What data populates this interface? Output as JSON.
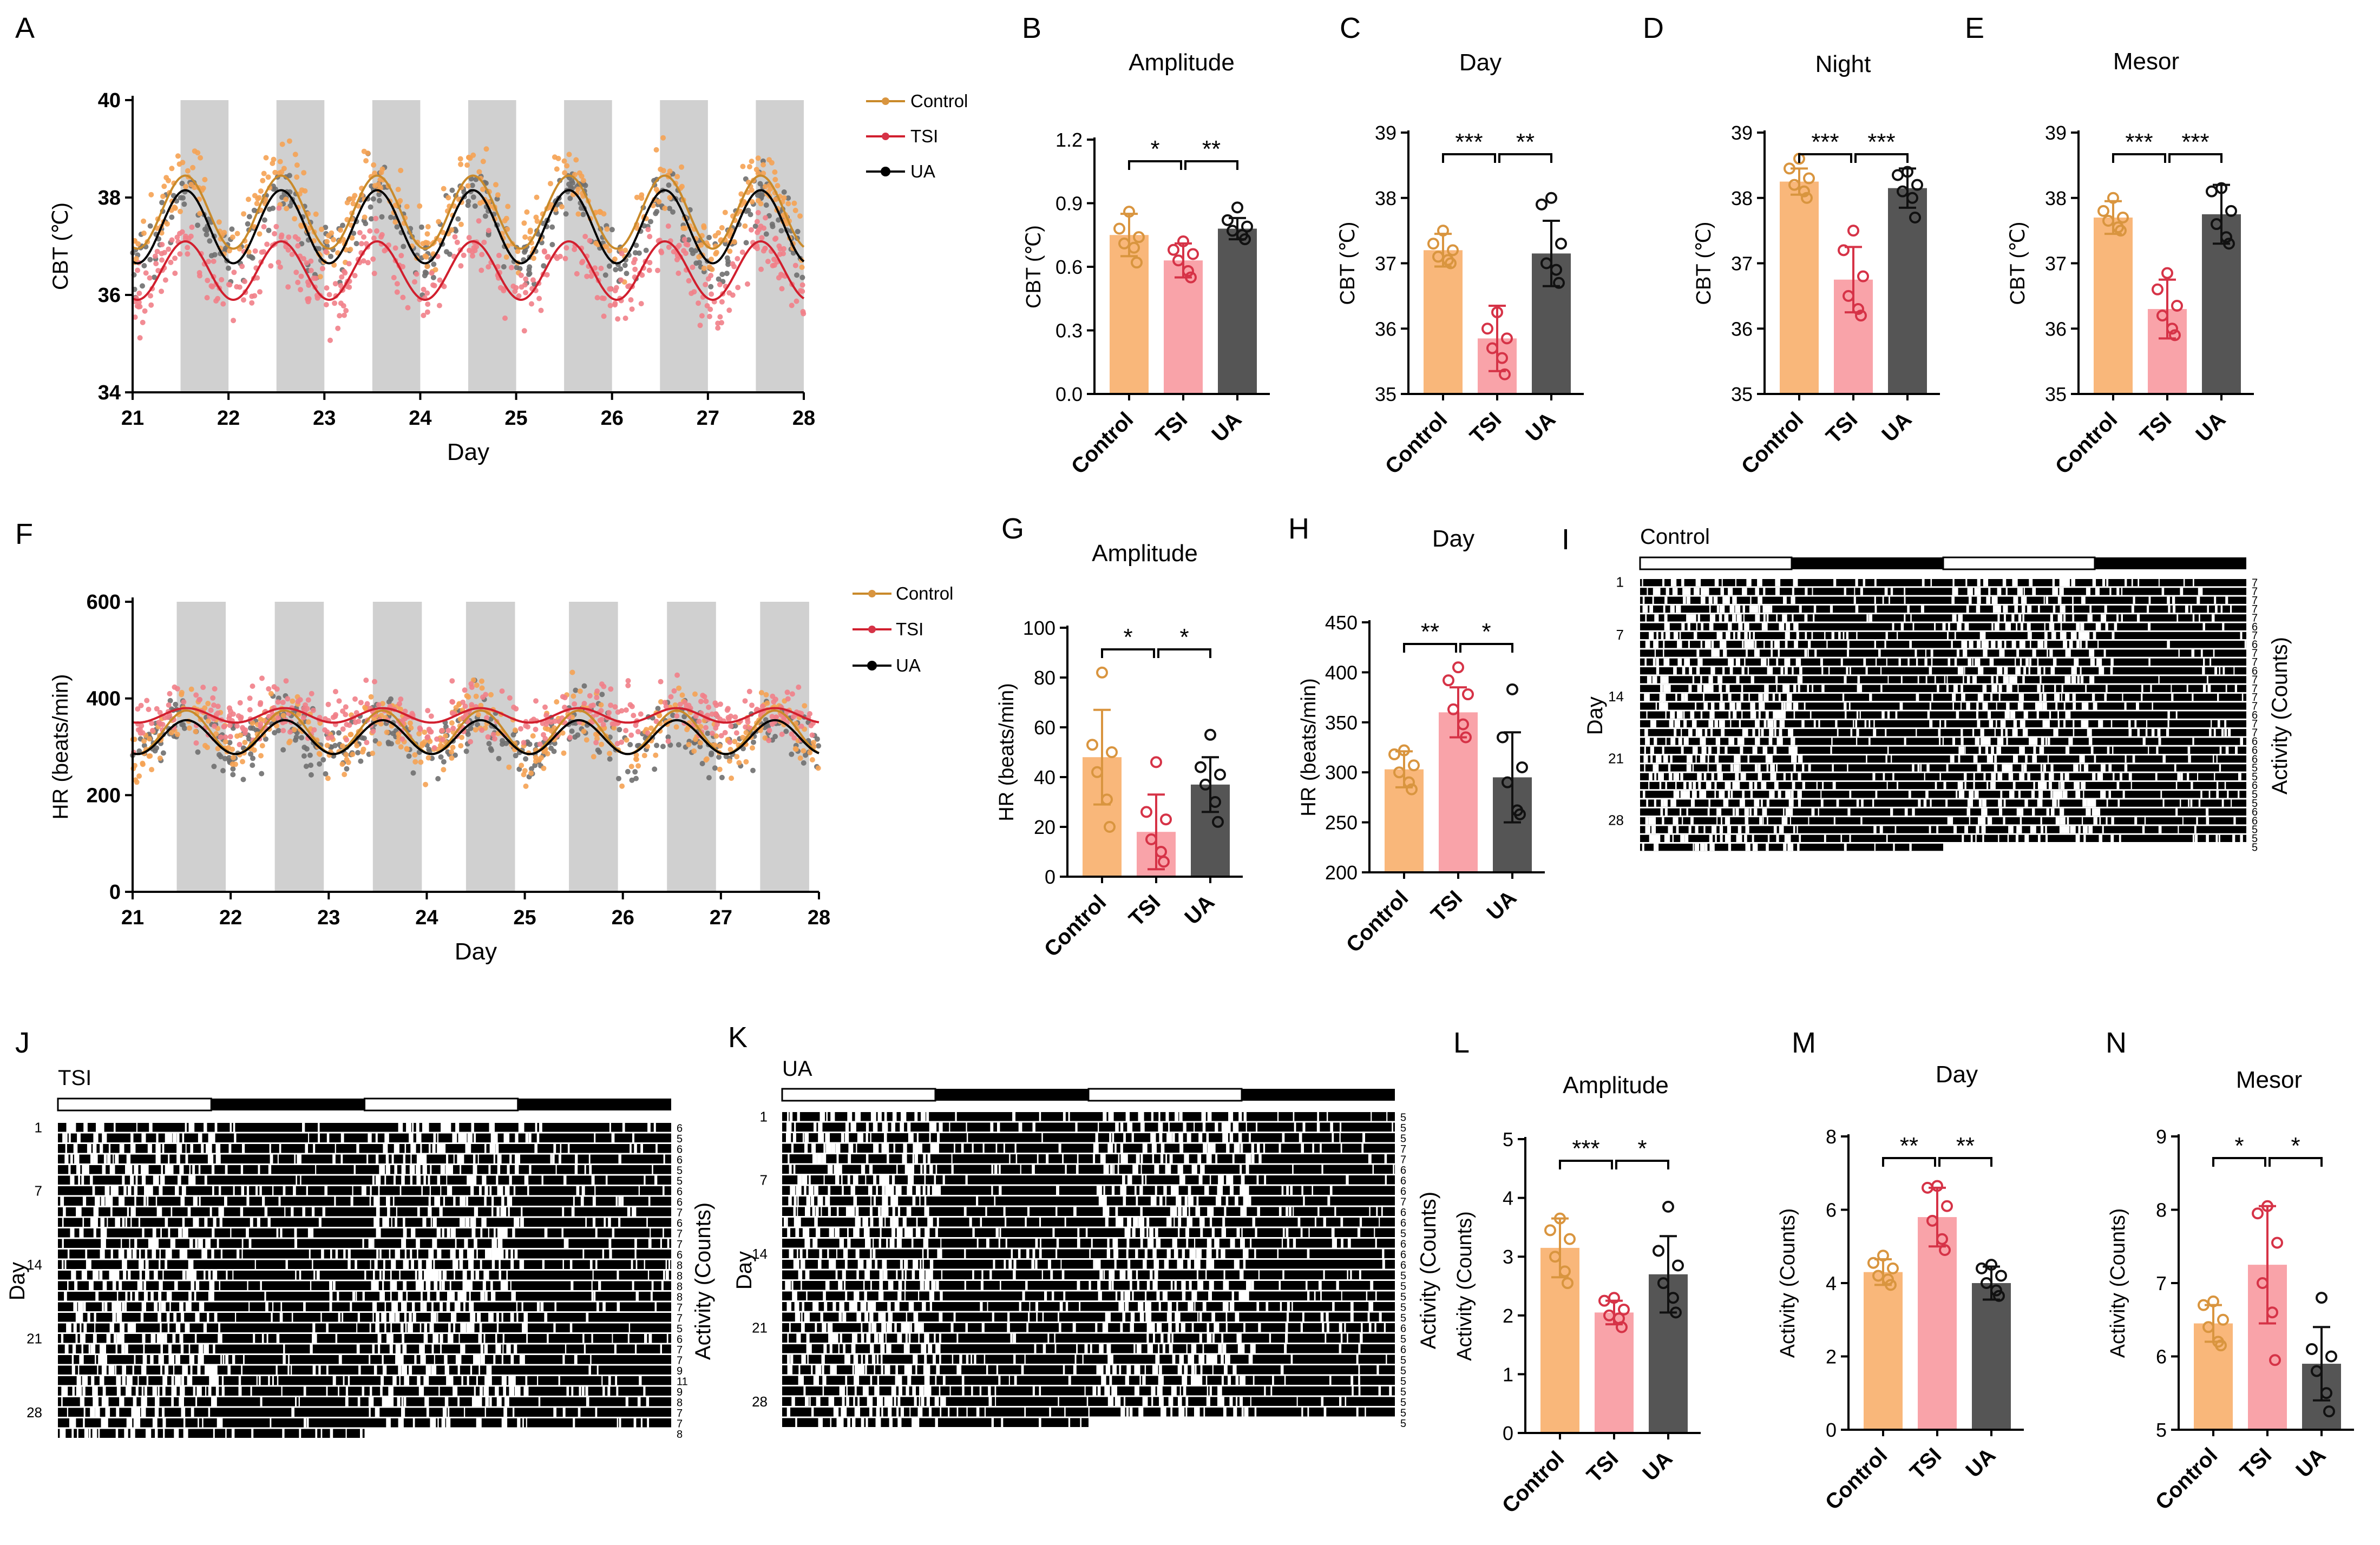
{
  "colors": {
    "control": "#F9B77A",
    "control_pt": "#D9953F",
    "control_line": "#C98A2A",
    "tsi": "#F9A3A9",
    "tsi_pt": "#D63347",
    "tsi_line": "#D11F2E",
    "ua": "#555555",
    "ua_pt": "#111111",
    "ua_line": "#000000",
    "night": "#D0D0D0",
    "blue_num": "#1F4FA0"
  },
  "legend": [
    "Control",
    "TSI",
    "UA"
  ],
  "panel_letters": [
    "A",
    "B",
    "C",
    "D",
    "E",
    "F",
    "G",
    "H",
    "I",
    "J",
    "K",
    "L",
    "M",
    "N"
  ],
  "chart_data": [
    {
      "id": "A",
      "type": "scatter",
      "xlabel": "Day",
      "ylabel": "CBT (℃)",
      "xlim": [
        21,
        28
      ],
      "ylim": [
        34,
        40
      ],
      "xticks": [
        21,
        22,
        23,
        24,
        25,
        26,
        27,
        28
      ],
      "yticks": [
        34,
        36,
        38,
        40
      ],
      "night_bands": [
        [
          21.5,
          22
        ],
        [
          22.5,
          23
        ],
        [
          23.5,
          24
        ],
        [
          24.5,
          25
        ],
        [
          25.5,
          26
        ],
        [
          26.5,
          27
        ],
        [
          27.5,
          28
        ]
      ],
      "series": [
        {
          "name": "Control",
          "mesor": 37.7,
          "amplitude": 0.75
        },
        {
          "name": "TSI",
          "mesor": 36.5,
          "amplitude": 0.6
        },
        {
          "name": "UA",
          "mesor": 37.4,
          "amplitude": 0.75
        }
      ]
    },
    {
      "id": "B",
      "type": "bar",
      "title": "Amplitude",
      "ylabel": "CBT (℃)",
      "categories": [
        "Control",
        "TSI",
        "UA"
      ],
      "means": [
        0.75,
        0.63,
        0.78
      ],
      "errors": [
        0.1,
        0.08,
        0.05
      ],
      "points": [
        [
          0.86,
          0.78,
          0.74,
          0.71,
          0.69,
          0.62
        ],
        [
          0.72,
          0.68,
          0.66,
          0.63,
          0.58,
          0.55
        ],
        [
          0.88,
          0.82,
          0.79,
          0.77,
          0.75,
          0.73
        ]
      ],
      "yticks": [
        "0.0",
        "0.3",
        "0.6",
        "0.9",
        "1.2"
      ],
      "ylim": [
        0,
        1.2
      ],
      "sig": [
        "*",
        "**"
      ]
    },
    {
      "id": "C",
      "type": "bar",
      "title": "Day",
      "ylabel": "CBT (℃)",
      "categories": [
        "Control",
        "TSI",
        "UA"
      ],
      "means": [
        37.2,
        35.85,
        37.15
      ],
      "errors": [
        0.25,
        0.5,
        0.5
      ],
      "points": [
        [
          37.5,
          37.3,
          37.2,
          37.1,
          37.05,
          37.0
        ],
        [
          36.25,
          36.0,
          35.85,
          35.7,
          35.55,
          35.3
        ],
        [
          38.0,
          37.9,
          37.3,
          37.0,
          36.9,
          36.7
        ]
      ],
      "yticks": [
        "35",
        "36",
        "37",
        "38",
        "39"
      ],
      "ylim": [
        35,
        39
      ],
      "sig": [
        "***",
        "**"
      ]
    },
    {
      "id": "D",
      "type": "bar",
      "title": "Night",
      "ylabel": "CBT (℃)",
      "categories": [
        "Control",
        "TSI",
        "UA"
      ],
      "means": [
        38.25,
        36.75,
        38.15
      ],
      "errors": [
        0.2,
        0.5,
        0.3
      ],
      "points": [
        [
          38.6,
          38.45,
          38.3,
          38.2,
          38.1,
          38.0
        ],
        [
          37.5,
          37.2,
          36.8,
          36.5,
          36.3,
          36.2
        ],
        [
          38.4,
          38.35,
          38.2,
          38.1,
          38.0,
          37.7
        ]
      ],
      "yticks": [
        "35",
        "36",
        "37",
        "38",
        "39"
      ],
      "ylim": [
        35,
        39
      ],
      "sig": [
        "***",
        "***"
      ]
    },
    {
      "id": "E",
      "type": "bar",
      "title": "Mesor",
      "ylabel": "CBT (℃)",
      "categories": [
        "Control",
        "TSI",
        "UA"
      ],
      "means": [
        37.7,
        36.3,
        37.75
      ],
      "errors": [
        0.25,
        0.45,
        0.45
      ],
      "points": [
        [
          38.0,
          37.8,
          37.7,
          37.65,
          37.55,
          37.5
        ],
        [
          36.85,
          36.6,
          36.35,
          36.2,
          36.0,
          35.9
        ],
        [
          38.15,
          38.1,
          37.8,
          37.6,
          37.4,
          37.3
        ]
      ],
      "yticks": [
        "35",
        "36",
        "37",
        "38",
        "39"
      ],
      "ylim": [
        35,
        39
      ],
      "sig": [
        "***",
        "***"
      ]
    },
    {
      "id": "F",
      "type": "scatter",
      "xlabel": "Day",
      "ylabel": "HR (beats/min)",
      "xlim": [
        21,
        28
      ],
      "ylim": [
        0,
        600
      ],
      "xticks": [
        21,
        22,
        23,
        24,
        25,
        26,
        27,
        28
      ],
      "yticks": [
        0,
        200,
        400,
        600
      ],
      "night_bands": [
        [
          21.45,
          21.95
        ],
        [
          22.45,
          22.95
        ],
        [
          23.45,
          23.95
        ],
        [
          24.4,
          24.9
        ],
        [
          25.45,
          25.95
        ],
        [
          26.45,
          26.95
        ],
        [
          27.4,
          27.9
        ]
      ],
      "series": [
        {
          "name": "Control",
          "mesor": 330,
          "amplitude": 45
        },
        {
          "name": "TSI",
          "mesor": 365,
          "amplitude": 15
        },
        {
          "name": "UA",
          "mesor": 320,
          "amplitude": 35
        }
      ]
    },
    {
      "id": "G",
      "type": "bar",
      "title": "Amplitude",
      "ylabel": "HR (beats/min)",
      "categories": [
        "Control",
        "TSI",
        "UA"
      ],
      "means": [
        48,
        18,
        37
      ],
      "errors": [
        19,
        15,
        11
      ],
      "points": [
        [
          82,
          53,
          50,
          42,
          31,
          20
        ],
        [
          46,
          26,
          23,
          15,
          10,
          6
        ],
        [
          57,
          44,
          41,
          37,
          30,
          22
        ]
      ],
      "yticks": [
        "0",
        "20",
        "40",
        "60",
        "80",
        "100"
      ],
      "ylim": [
        0,
        100
      ],
      "sig": [
        "*",
        "*"
      ]
    },
    {
      "id": "H",
      "type": "bar",
      "title": "Day",
      "ylabel": "HR (beats/min)",
      "categories": [
        "Control",
        "TSI",
        "UA"
      ],
      "means": [
        303,
        360,
        295
      ],
      "errors": [
        18,
        25,
        45
      ],
      "points": [
        [
          322,
          318,
          307,
          300,
          290,
          283
        ],
        [
          405,
          392,
          378,
          363,
          348,
          335
        ],
        [
          383,
          335,
          305,
          290,
          262,
          258
        ]
      ],
      "yticks": [
        "200",
        "250",
        "300",
        "350",
        "400",
        "450"
      ],
      "ylim": [
        200,
        450
      ],
      "sig": [
        "**",
        "*"
      ]
    },
    {
      "id": "I",
      "type": "actogram",
      "title": "Control",
      "xlabel": "Day",
      "ylabel": "Activity (Counts)",
      "day_labels": [
        "1",
        "7",
        "14",
        "21",
        "28"
      ],
      "scale_nums": [
        "7",
        "7",
        "7",
        "7",
        "7",
        "6",
        "7",
        "6",
        "7",
        "7",
        "6",
        "7",
        "7",
        "7",
        "7",
        "6",
        "7",
        "7",
        "6",
        "6",
        "6",
        "5",
        "5",
        "6",
        "5",
        "5",
        "6",
        "6",
        "5",
        "5",
        "5"
      ]
    },
    {
      "id": "J",
      "type": "actogram",
      "title": "TSI",
      "xlabel": "Day",
      "ylabel": "Activity (Counts)",
      "day_labels": [
        "1",
        "7",
        "14",
        "21",
        "28"
      ],
      "scale_nums": [
        "6",
        "5",
        "6",
        "6",
        "5",
        "5",
        "6",
        "6",
        "7",
        "6",
        "7",
        "7",
        "6",
        "8",
        "8",
        "8",
        "8",
        "7",
        "7",
        "5",
        "6",
        "7",
        "7",
        "9",
        "11",
        "9",
        "8",
        "7",
        "7",
        "8"
      ]
    },
    {
      "id": "K",
      "type": "actogram",
      "title": "UA",
      "xlabel": "Day",
      "ylabel": "Activity (Counts)",
      "day_labels": [
        "1",
        "7",
        "14",
        "21",
        "28"
      ],
      "scale_nums": [
        "5",
        "5",
        "5",
        "7",
        "7",
        "6",
        "6",
        "6",
        "7",
        "6",
        "6",
        "5",
        "6",
        "6",
        "6",
        "5",
        "5",
        "5",
        "5",
        "5",
        "6",
        "5",
        "6",
        "5",
        "5",
        "5",
        "5",
        "5",
        "5",
        "5"
      ]
    },
    {
      "id": "L",
      "type": "bar",
      "title": "Amplitude",
      "ylabel": "Activity (Counts)",
      "categories": [
        "Control",
        "TSI",
        "UA"
      ],
      "means": [
        3.15,
        2.05,
        2.7
      ],
      "errors": [
        0.5,
        0.2,
        0.65
      ],
      "points": [
        [
          3.65,
          3.45,
          3.3,
          3.0,
          2.75,
          2.55
        ],
        [
          2.3,
          2.25,
          2.1,
          2.0,
          1.95,
          1.8
        ],
        [
          3.85,
          3.1,
          2.85,
          2.55,
          2.3,
          2.05
        ]
      ],
      "yticks": [
        "0",
        "1",
        "2",
        "3",
        "4",
        "5"
      ],
      "ylim": [
        0,
        5
      ],
      "sig": [
        "***",
        "*"
      ]
    },
    {
      "id": "M",
      "type": "bar",
      "title": "Day",
      "ylabel": "Activity (Counts)",
      "categories": [
        "Control",
        "TSI",
        "UA"
      ],
      "means": [
        4.3,
        5.8,
        4.0
      ],
      "errors": [
        0.35,
        0.8,
        0.45
      ],
      "points": [
        [
          4.75,
          4.55,
          4.4,
          4.2,
          4.1,
          3.95
        ],
        [
          6.65,
          6.6,
          6.1,
          5.7,
          5.2,
          4.9
        ],
        [
          4.5,
          4.4,
          4.2,
          4.0,
          3.8,
          3.65
        ]
      ],
      "yticks": [
        "0",
        "2",
        "4",
        "6",
        "8"
      ],
      "ylim": [
        0,
        8
      ],
      "sig": [
        "**",
        "**"
      ]
    },
    {
      "id": "N",
      "type": "bar",
      "title": "Mesor",
      "ylabel": "Activity (Counts)",
      "categories": [
        "Control",
        "TSI",
        "UA"
      ],
      "means": [
        6.45,
        7.25,
        5.9
      ],
      "errors": [
        0.25,
        0.8,
        0.5
      ],
      "points": [
        [
          6.75,
          6.7,
          6.5,
          6.4,
          6.2,
          6.15
        ],
        [
          8.05,
          7.95,
          7.55,
          7.0,
          6.6,
          5.95
        ],
        [
          6.8,
          6.1,
          6.0,
          5.8,
          5.5,
          5.25
        ]
      ],
      "yticks": [
        "5",
        "6",
        "7",
        "8",
        "9"
      ],
      "ylim": [
        5,
        9
      ],
      "sig": [
        "*",
        "*"
      ]
    }
  ]
}
